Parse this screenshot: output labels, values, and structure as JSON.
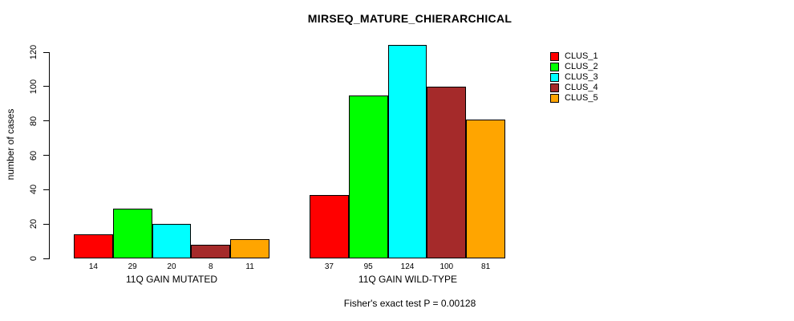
{
  "chart_data": {
    "type": "bar",
    "title": "MIRSEQ_MATURE_CHIERARCHICAL",
    "ylabel": "number of cases",
    "xlabel": "",
    "yticks": [
      0,
      20,
      40,
      60,
      80,
      100,
      120
    ],
    "ylim": [
      0,
      124
    ],
    "grid": false,
    "legend_position": "top-right",
    "bar_value_labels": true,
    "groups": [
      {
        "label": "11Q GAIN MUTATED",
        "values": [
          14,
          29,
          20,
          8,
          11
        ]
      },
      {
        "label": "11Q GAIN WILD-TYPE",
        "values": [
          37,
          95,
          124,
          100,
          81
        ]
      }
    ],
    "series": [
      {
        "name": "CLUS_1",
        "color": "#FF0000"
      },
      {
        "name": "CLUS_2",
        "color": "#00FF00"
      },
      {
        "name": "CLUS_3",
        "color": "#00FFFF"
      },
      {
        "name": "CLUS_4",
        "color": "#A52A2A"
      },
      {
        "name": "CLUS_5",
        "color": "#FFA500"
      }
    ],
    "annotation": "Fisher's exact test P = 0.00128"
  }
}
